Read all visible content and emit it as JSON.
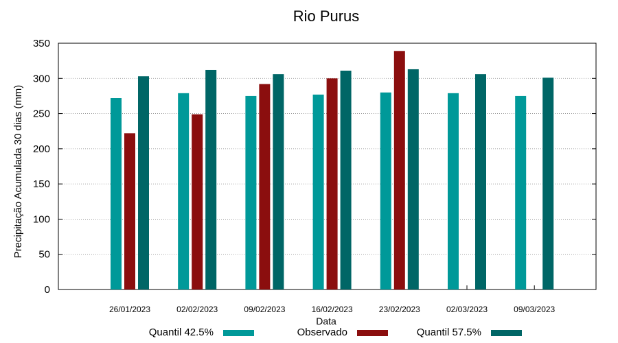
{
  "chart_data": {
    "type": "bar",
    "title": "Rio Purus",
    "xlabel": "Data",
    "ylabel": "Precipitação Acumulada 30 dias (mm)",
    "ylim": [
      0,
      350
    ],
    "yticks": [
      0,
      50,
      100,
      150,
      200,
      250,
      300,
      350
    ],
    "grid": true,
    "legend_position": "bottom",
    "categories": [
      "26/01/2023",
      "02/02/2023",
      "09/02/2023",
      "16/02/2023",
      "23/02/2023",
      "02/03/2023",
      "09/03/2023"
    ],
    "series": [
      {
        "name": "Quantil 42.5%",
        "color": "#009999",
        "values": [
          272,
          279,
          275,
          277,
          280,
          279,
          275
        ]
      },
      {
        "name": "Observado",
        "color": "#8b0e0e",
        "values": [
          222,
          249,
          292,
          300,
          339,
          null,
          null
        ]
      },
      {
        "name": "Quantil 57.5%",
        "color": "#006666",
        "values": [
          303,
          312,
          306,
          311,
          313,
          306,
          301
        ]
      }
    ]
  }
}
